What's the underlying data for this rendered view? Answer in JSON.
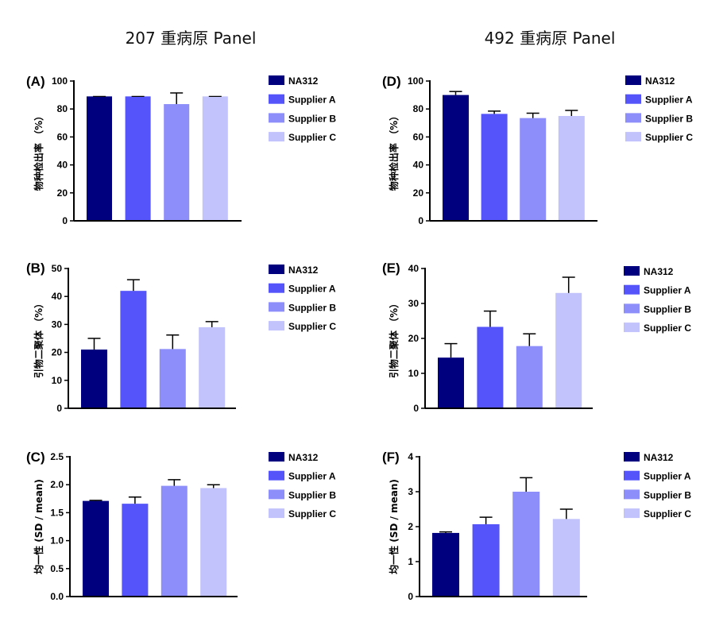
{
  "titles": {
    "left": "207 重病原 Panel",
    "right": "492 重病原 Panel"
  },
  "legend": [
    "NA312",
    "Supplier A",
    "Supplier B",
    "Supplier C"
  ],
  "colors": [
    "#00007f",
    "#5454fa",
    "#8e8efb",
    "#c2c2fc"
  ],
  "chart_data": [
    {
      "type": "bar",
      "panel": "(A)",
      "column": "207 重病原 Panel",
      "ylabel": "物种检出率 （%）",
      "categories": [
        "NA312",
        "Supplier A",
        "Supplier B",
        "Supplier C"
      ],
      "values": [
        89,
        89,
        83.5,
        89
      ],
      "errors": [
        0,
        0,
        8,
        0
      ],
      "ylim": [
        0,
        100
      ],
      "yticks": [
        0,
        20,
        40,
        60,
        80,
        100
      ],
      "ytick_labels": [
        "0",
        "20",
        "40",
        "60",
        "80",
        "100"
      ],
      "legend_position": "right"
    },
    {
      "type": "bar",
      "panel": "(B)",
      "column": "207 重病原 Panel",
      "ylabel": "引物二聚体 （%）",
      "categories": [
        "NA312",
        "Supplier A",
        "Supplier B",
        "Supplier C"
      ],
      "values": [
        21,
        42,
        21.2,
        29
      ],
      "errors": [
        4,
        4,
        5,
        2
      ],
      "ylim": [
        0,
        50
      ],
      "yticks": [
        0,
        10,
        20,
        30,
        40,
        50
      ],
      "ytick_labels": [
        "0",
        "10",
        "20",
        "30",
        "40",
        "50"
      ],
      "legend_position": "right"
    },
    {
      "type": "bar",
      "panel": "(C)",
      "column": "207 重病原 Panel",
      "ylabel": "均一性 (SD / mean)",
      "categories": [
        "NA312",
        "Supplier A",
        "Supplier B",
        "Supplier C"
      ],
      "values": [
        1.71,
        1.66,
        1.98,
        1.94
      ],
      "errors": [
        0.01,
        0.12,
        0.11,
        0.06
      ],
      "ylim": [
        0,
        2.5
      ],
      "yticks": [
        0,
        0.5,
        1.0,
        1.5,
        2.0,
        2.5
      ],
      "ytick_labels": [
        "0.0",
        "0.5",
        "1.0",
        "1.5",
        "2.0",
        "2.5"
      ],
      "legend_position": "right"
    },
    {
      "type": "bar",
      "panel": "(D)",
      "column": "492 重病原 Panel",
      "ylabel": "物种检出率 （%）",
      "categories": [
        "NA312",
        "Supplier A",
        "Supplier B",
        "Supplier C"
      ],
      "values": [
        90,
        76.5,
        73.5,
        75
      ],
      "errors": [
        2.5,
        2,
        3.5,
        4
      ],
      "ylim": [
        0,
        100
      ],
      "yticks": [
        0,
        20,
        40,
        60,
        80,
        100
      ],
      "ytick_labels": [
        "0",
        "20",
        "40",
        "60",
        "80",
        "100"
      ],
      "legend_position": "right"
    },
    {
      "type": "bar",
      "panel": "(E)",
      "column": "492 重病原 Panel",
      "ylabel": "引物二聚体 （%）",
      "categories": [
        "NA312",
        "Supplier A",
        "Supplier B",
        "Supplier C"
      ],
      "values": [
        14.5,
        23.3,
        17.8,
        33
      ],
      "errors": [
        4,
        4.5,
        3.5,
        4.5
      ],
      "ylim": [
        0,
        40
      ],
      "yticks": [
        0,
        10,
        20,
        30,
        40
      ],
      "ytick_labels": [
        "0",
        "10",
        "20",
        "30",
        "40"
      ],
      "legend_position": "right"
    },
    {
      "type": "bar",
      "panel": "(F)",
      "column": "492 重病原 Panel",
      "ylabel": "均一性 (SD / mean)",
      "categories": [
        "NA312",
        "Supplier A",
        "Supplier B",
        "Supplier C"
      ],
      "values": [
        1.82,
        2.07,
        3.0,
        2.22
      ],
      "errors": [
        0.03,
        0.2,
        0.4,
        0.28
      ],
      "ylim": [
        0,
        4
      ],
      "yticks": [
        0,
        1,
        2,
        3,
        4
      ],
      "ytick_labels": [
        "0",
        "1",
        "2",
        "3",
        "4"
      ],
      "legend_position": "right"
    }
  ]
}
